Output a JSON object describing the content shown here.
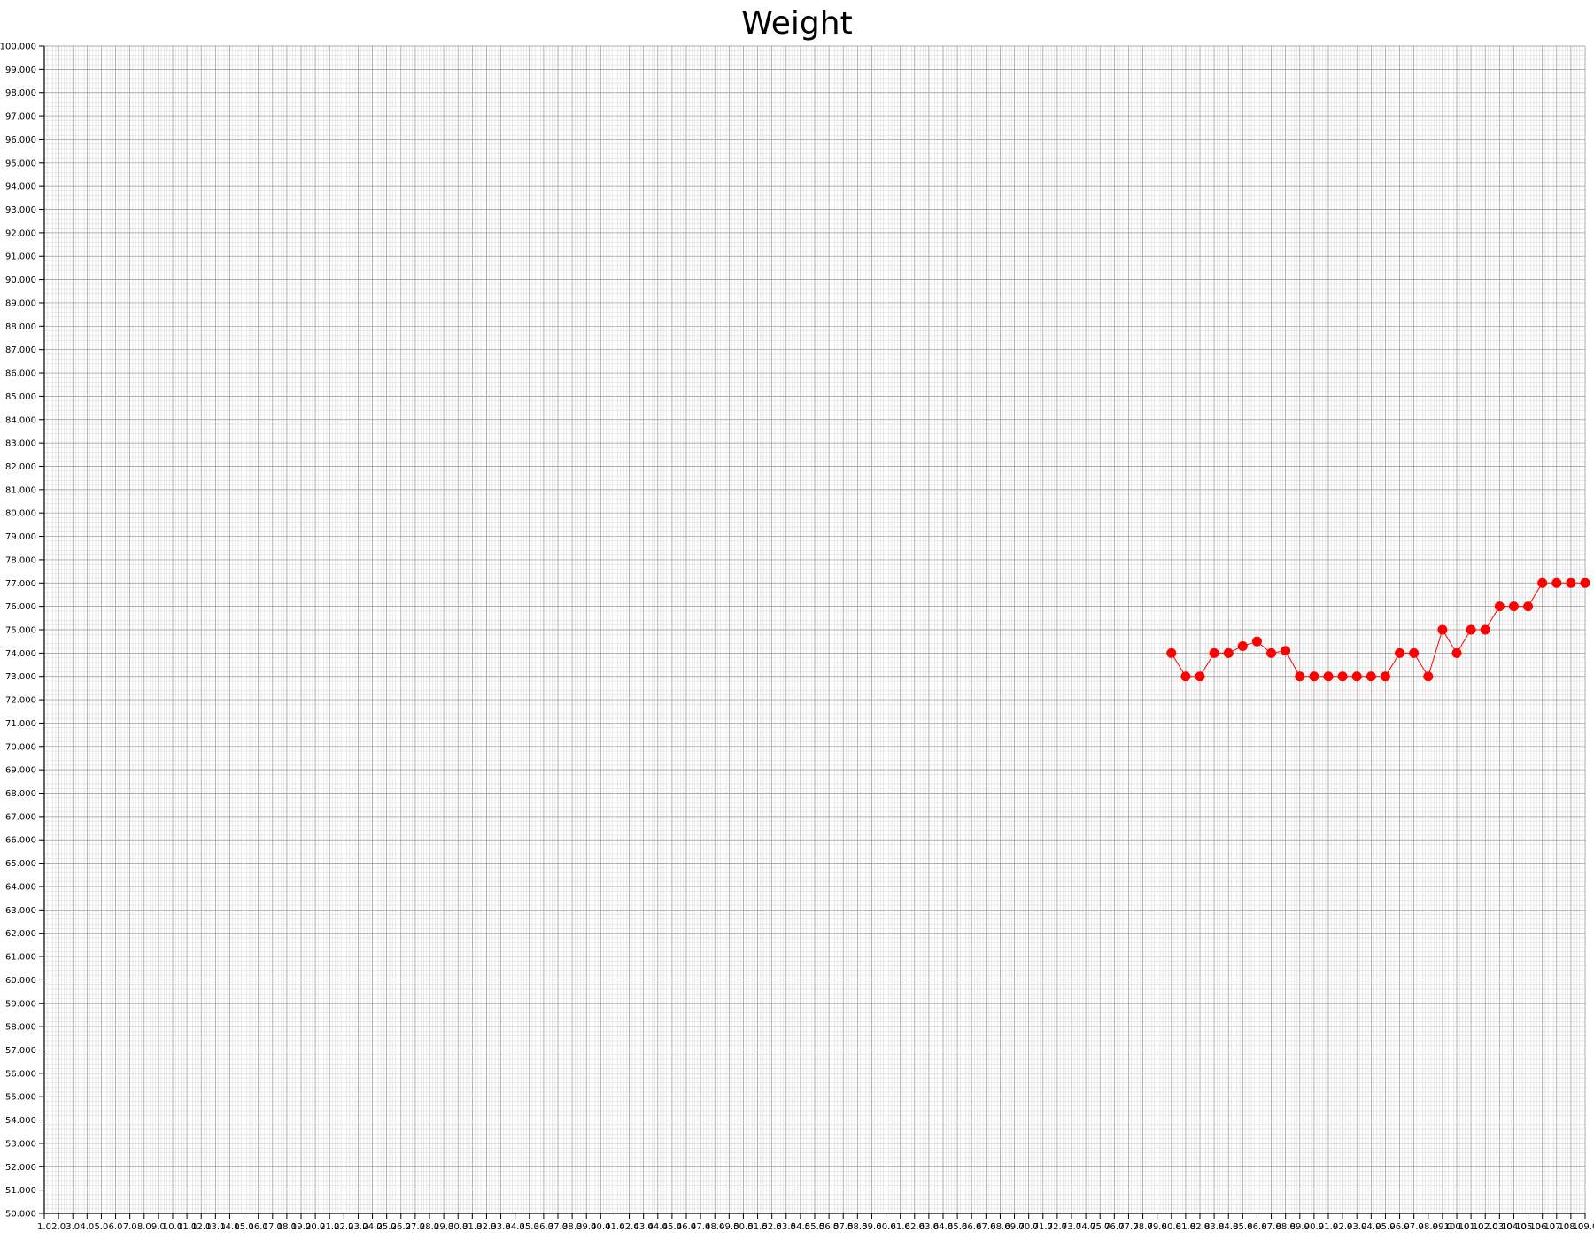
{
  "chart_data": {
    "type": "line",
    "title": "Weight",
    "xlabel": "",
    "ylabel": "",
    "x_range": [
      1,
      109
    ],
    "ylim": [
      50,
      100
    ],
    "y_major_step": 1,
    "y_minor_step": 0.2,
    "x_minor_step": 0.2,
    "grid": true,
    "legend": "none",
    "colors": {
      "series": "#ff0000",
      "grid_major": "#999999",
      "grid_minor": "#dddddd",
      "axis": "#000000"
    },
    "series": [
      {
        "x": [
          80,
          81,
          82,
          83,
          84,
          85,
          86,
          87,
          88,
          89,
          90,
          91,
          92,
          93,
          94,
          95,
          96,
          97,
          98,
          99,
          100,
          101,
          102,
          103,
          104,
          105,
          106,
          107,
          108,
          109
        ],
        "values": [
          74,
          73,
          73,
          74,
          74,
          74.3,
          74.5,
          74,
          74.1,
          73,
          73,
          73,
          73,
          73,
          73,
          73,
          74,
          74,
          73,
          75,
          74,
          75,
          75,
          76,
          76,
          76,
          77,
          77,
          77,
          77
        ]
      }
    ]
  }
}
